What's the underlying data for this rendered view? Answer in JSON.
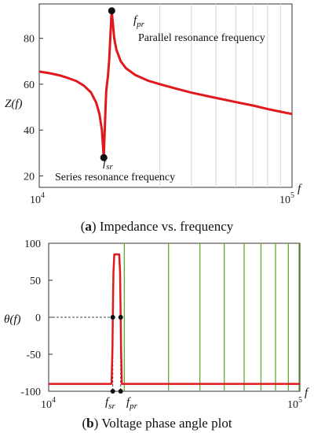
{
  "chart_data": [
    {
      "type": "line",
      "caption": {
        "letter": "a",
        "text": "Impedance vs. frequency"
      },
      "ylabel": "Z(f)",
      "xlabel": "f",
      "xscale": "log",
      "xlim": [
        10000,
        100000
      ],
      "ylim": [
        15,
        95
      ],
      "yticks": [
        20,
        40,
        60,
        80
      ],
      "xtick_labels": [
        {
          "x": 10000,
          "base": "10",
          "exp": "4"
        },
        {
          "x": 100000,
          "base": "10",
          "exp": "5"
        }
      ],
      "grid": "vertical lines at 30k–90k (light gray)",
      "series": [
        {
          "color": "#e0191e",
          "points": [
            [
              10000,
              65.5
            ],
            [
              11000,
              64.8
            ],
            [
              12000,
              63.9
            ],
            [
              13000,
              62.7
            ],
            [
              14000,
              61.4
            ],
            [
              15000,
              59.4
            ],
            [
              16000,
              56.5
            ],
            [
              16800,
              52.0
            ],
            [
              17300,
              47.0
            ],
            [
              17700,
              40.0
            ],
            [
              17900,
              32.0
            ],
            [
              18000,
              28.0
            ],
            [
              18150,
              40.0
            ],
            [
              18400,
              57.0
            ],
            [
              18700,
              63.5
            ],
            [
              18900,
              70.0
            ],
            [
              19100,
              80.0
            ],
            [
              19250,
              88.0
            ],
            [
              19350,
              92.0
            ],
            [
              19500,
              88.0
            ],
            [
              19800,
              80.0
            ],
            [
              20200,
              75.0
            ],
            [
              21000,
              70.0
            ],
            [
              22000,
              67.0
            ],
            [
              24000,
              64.0
            ],
            [
              27000,
              61.5
            ],
            [
              30000,
              60.0
            ],
            [
              35000,
              58.0
            ],
            [
              40000,
              56.3
            ],
            [
              50000,
              54.0
            ],
            [
              60000,
              52.2
            ],
            [
              70000,
              50.7
            ],
            [
              80000,
              49.2
            ],
            [
              90000,
              48.0
            ],
            [
              100000,
              47.0
            ]
          ]
        }
      ],
      "markers": [
        {
          "x": 18000,
          "y": 28,
          "name": "f_sr"
        },
        {
          "x": 19350,
          "y": 92,
          "name": "f_pr"
        }
      ],
      "annotations": [
        {
          "base": "f",
          "sub": "pr"
        },
        {
          "text": "Parallel  resonance frequency"
        },
        {
          "base": "f",
          "sub": "sr"
        },
        {
          "text": "Series resonance frequency"
        }
      ]
    },
    {
      "type": "line",
      "caption": {
        "letter": "b",
        "text": "Voltage phase angle plot"
      },
      "ylabel": "θ(f)",
      "xlabel": "f",
      "xscale": "log",
      "xlim": [
        10000,
        100000
      ],
      "ylim": [
        -100,
        100
      ],
      "yticks": [
        -100,
        -50,
        0,
        50,
        100
      ],
      "xtick_labels": [
        {
          "x": 10000,
          "base": "10",
          "exp": "4"
        },
        {
          "x": 100000,
          "base": "10",
          "exp": "5"
        }
      ],
      "grid": "vertical lines at 20k–100k (green)",
      "series": [
        {
          "color": "#e0191e",
          "points": [
            [
              10000,
              -90
            ],
            [
              17800,
              -90
            ],
            [
              17950,
              -40
            ],
            [
              18000,
              0
            ],
            [
              18100,
              60
            ],
            [
              18250,
              85
            ],
            [
              19100,
              85
            ],
            [
              19250,
              60
            ],
            [
              19350,
              0
            ],
            [
              19420,
              -40
            ],
            [
              19550,
              -90
            ],
            [
              100000,
              -90
            ]
          ]
        }
      ],
      "markers": [
        {
          "x": 18000,
          "y": 0,
          "name": "f_sr"
        },
        {
          "x": 19350,
          "y": 0,
          "name": "f_pr"
        },
        {
          "x": 18000,
          "y": -100,
          "name": "f_sr-axis"
        },
        {
          "x": 19350,
          "y": -100,
          "name": "f_pr-axis"
        }
      ],
      "annotations": [
        {
          "base": "f",
          "sub": "sr"
        },
        {
          "base": "f",
          "sub": "pr"
        }
      ]
    }
  ]
}
